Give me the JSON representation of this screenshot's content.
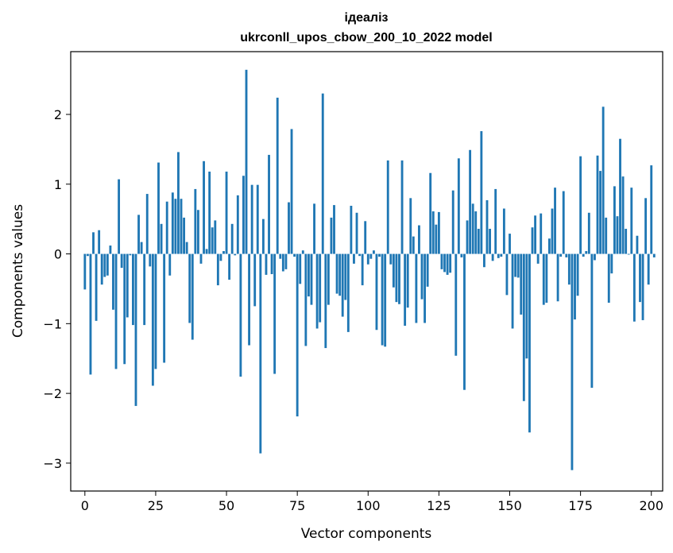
{
  "chart_data": {
    "type": "bar",
    "title": [
      "ідеаліз",
      "ukrconll_upos_cbow_200_10_2022 model"
    ],
    "xlabel": "Vector components",
    "ylabel": "Components values",
    "xlim": [
      -5,
      204
    ],
    "ylim": [
      -3.4,
      2.9
    ],
    "xticks": [
      0,
      25,
      50,
      75,
      100,
      125,
      150,
      175,
      200
    ],
    "yticks": [
      -3,
      -2,
      -1,
      0,
      1,
      2
    ],
    "ytick_labels": [
      "−3",
      "−2",
      "−1",
      "0",
      "1",
      "2"
    ],
    "bar_color": "#1f77b4",
    "bar_width": 0.8,
    "values": [
      -0.51,
      -0.03,
      -1.73,
      0.31,
      -0.96,
      0.34,
      -0.44,
      -0.33,
      -0.31,
      0.12,
      -0.8,
      -1.65,
      1.07,
      -0.2,
      -1.58,
      -0.91,
      -0.02,
      -1.02,
      -2.18,
      0.56,
      0.17,
      -1.02,
      0.86,
      -0.18,
      -1.89,
      -1.65,
      1.31,
      0.43,
      -1.56,
      0.75,
      -0.31,
      0.88,
      0.79,
      1.46,
      0.79,
      0.52,
      0.17,
      -0.99,
      -1.23,
      0.93,
      0.63,
      -0.14,
      1.33,
      0.07,
      1.18,
      0.38,
      0.48,
      -0.45,
      -0.1,
      0.04,
      1.18,
      -0.37,
      0.43,
      -0.02,
      0.84,
      -1.76,
      1.12,
      2.64,
      -1.31,
      0.99,
      -0.75,
      0.99,
      -2.86,
      0.5,
      -0.3,
      1.42,
      -0.29,
      -1.72,
      2.24,
      -0.07,
      -0.25,
      -0.22,
      0.74,
      1.79,
      -0.04,
      -2.33,
      -0.43,
      0.05,
      -1.32,
      -0.61,
      -0.73,
      0.72,
      -1.07,
      -0.98,
      2.3,
      -1.35,
      -0.73,
      0.52,
      0.7,
      -0.57,
      -0.6,
      -0.9,
      -0.66,
      -1.12,
      0.69,
      -0.14,
      0.59,
      -0.03,
      -0.45,
      0.47,
      -0.15,
      -0.07,
      0.05,
      -1.09,
      -0.04,
      -1.31,
      -1.33,
      1.34,
      -0.15,
      -0.48,
      -0.69,
      -0.72,
      1.34,
      -1.03,
      -0.77,
      0.8,
      0.25,
      -0.99,
      0.41,
      -0.65,
      -0.99,
      -0.47,
      1.16,
      0.61,
      0.42,
      0.6,
      -0.22,
      -0.26,
      -0.3,
      -0.27,
      0.91,
      -1.46,
      1.37,
      -0.05,
      -1.95,
      0.48,
      1.49,
      0.72,
      0.61,
      0.36,
      1.76,
      -0.19,
      0.77,
      0.36,
      -0.1,
      0.93,
      -0.06,
      -0.04,
      0.65,
      -0.59,
      0.29,
      -1.07,
      -0.33,
      -0.34,
      -0.87,
      -2.11,
      -1.5,
      -2.56,
      0.38,
      0.55,
      -0.14,
      0.58,
      -0.73,
      -0.7,
      0.22,
      0.65,
      0.95,
      -0.68,
      -0.04,
      0.9,
      -0.05,
      -0.44,
      -3.1,
      -0.94,
      -0.6,
      1.4,
      -0.04,
      0.04,
      0.59,
      -1.92,
      -0.09,
      1.41,
      1.19,
      2.11,
      0.52,
      -0.7,
      -0.28,
      0.97,
      0.54,
      1.65,
      1.11,
      0.36,
      -0.01,
      0.95,
      -0.97,
      0.26,
      -0.69,
      -0.95,
      0.8,
      -0.44,
      1.27,
      -0.05
    ]
  }
}
